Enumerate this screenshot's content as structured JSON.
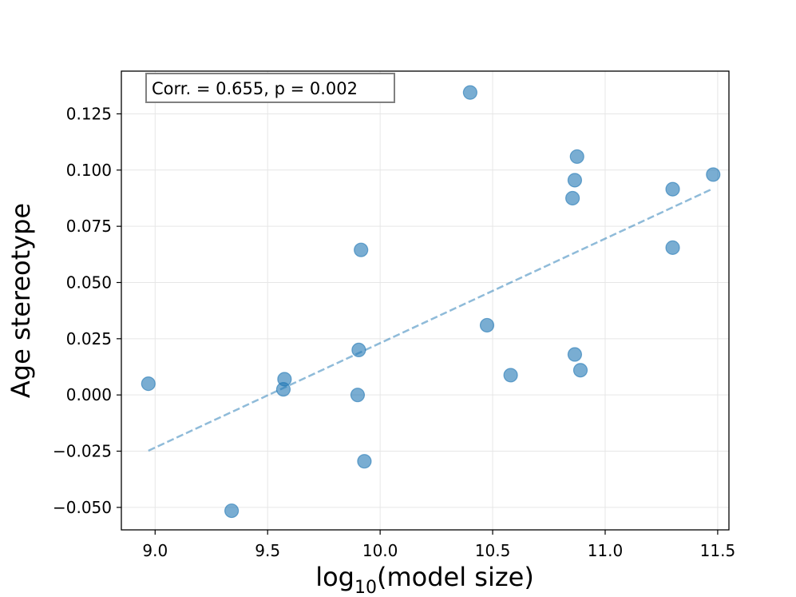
{
  "chart_data": {
    "type": "scatter",
    "title": "",
    "xlabel_base": "log",
    "xlabel_sub": "10",
    "xlabel_rest": "(model size)",
    "ylabel": "Age stereotype",
    "xlim": [
      8.85,
      11.55
    ],
    "ylim": [
      -0.06,
      0.144
    ],
    "grid": true,
    "xticks": [
      9.0,
      9.5,
      10.0,
      10.5,
      11.0,
      11.5
    ],
    "xtick_labels": [
      "9.0",
      "9.5",
      "10.0",
      "10.5",
      "11.0",
      "11.5"
    ],
    "yticks": [
      -0.05,
      -0.025,
      0.0,
      0.025,
      0.05,
      0.075,
      0.1,
      0.125
    ],
    "ytick_labels": [
      "−0.050",
      "−0.025",
      "0.000",
      "0.025",
      "0.050",
      "0.075",
      "0.100",
      "0.125"
    ],
    "points": [
      {
        "x": 8.97,
        "y": 0.005
      },
      {
        "x": 9.34,
        "y": -0.0515
      },
      {
        "x": 9.57,
        "y": 0.0025
      },
      {
        "x": 9.575,
        "y": 0.007
      },
      {
        "x": 9.9,
        "y": 0.0
      },
      {
        "x": 9.905,
        "y": 0.02
      },
      {
        "x": 9.915,
        "y": 0.0645
      },
      {
        "x": 9.93,
        "y": -0.0295
      },
      {
        "x": 10.4,
        "y": 0.1345
      },
      {
        "x": 10.475,
        "y": 0.031
      },
      {
        "x": 10.58,
        "y": 0.0088
      },
      {
        "x": 10.855,
        "y": 0.0875
      },
      {
        "x": 10.865,
        "y": 0.0955
      },
      {
        "x": 10.865,
        "y": 0.018
      },
      {
        "x": 10.875,
        "y": 0.106
      },
      {
        "x": 10.89,
        "y": 0.011
      },
      {
        "x": 11.3,
        "y": 0.0915
      },
      {
        "x": 11.3,
        "y": 0.0655
      },
      {
        "x": 11.48,
        "y": 0.098
      }
    ],
    "fit_line": {
      "x": [
        8.97,
        11.48
      ],
      "y": [
        -0.0248,
        0.0918
      ]
    },
    "annotation": "Corr. = 0.655, p = 0.002",
    "point_color": "#1f77b4",
    "line_color": "#1f77b4"
  }
}
